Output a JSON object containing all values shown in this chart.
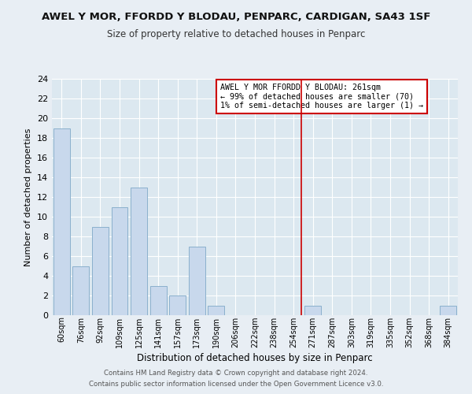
{
  "title": "AWEL Y MOR, FFORDD Y BLODAU, PENPARC, CARDIGAN, SA43 1SF",
  "subtitle": "Size of property relative to detached houses in Penparc",
  "xlabel": "Distribution of detached houses by size in Penparc",
  "ylabel": "Number of detached properties",
  "bar_color": "#c8d8ec",
  "bar_edgecolor": "#8ab0cc",
  "categories": [
    "60sqm",
    "76sqm",
    "92sqm",
    "109sqm",
    "125sqm",
    "141sqm",
    "157sqm",
    "173sqm",
    "190sqm",
    "206sqm",
    "222sqm",
    "238sqm",
    "254sqm",
    "271sqm",
    "287sqm",
    "303sqm",
    "319sqm",
    "335sqm",
    "352sqm",
    "368sqm",
    "384sqm"
  ],
  "values": [
    19,
    5,
    9,
    11,
    13,
    3,
    2,
    7,
    1,
    0,
    0,
    0,
    0,
    1,
    0,
    0,
    0,
    0,
    0,
    0,
    1
  ],
  "ylim": [
    0,
    24
  ],
  "yticks": [
    0,
    2,
    4,
    6,
    8,
    10,
    12,
    14,
    16,
    18,
    20,
    22,
    24
  ],
  "vline_color": "#cc0000",
  "annotation_text": "AWEL Y MOR FFORDD Y BLODAU: 261sqm\n← 99% of detached houses are smaller (70)\n1% of semi-detached houses are larger (1) →",
  "footer_line1": "Contains HM Land Registry data © Crown copyright and database right 2024.",
  "footer_line2": "Contains public sector information licensed under the Open Government Licence v3.0.",
  "fig_facecolor": "#e8eef4",
  "ax_facecolor": "#dce8f0",
  "grid_color": "#ffffff",
  "title_fontsize": 9.5,
  "subtitle_fontsize": 8.5
}
